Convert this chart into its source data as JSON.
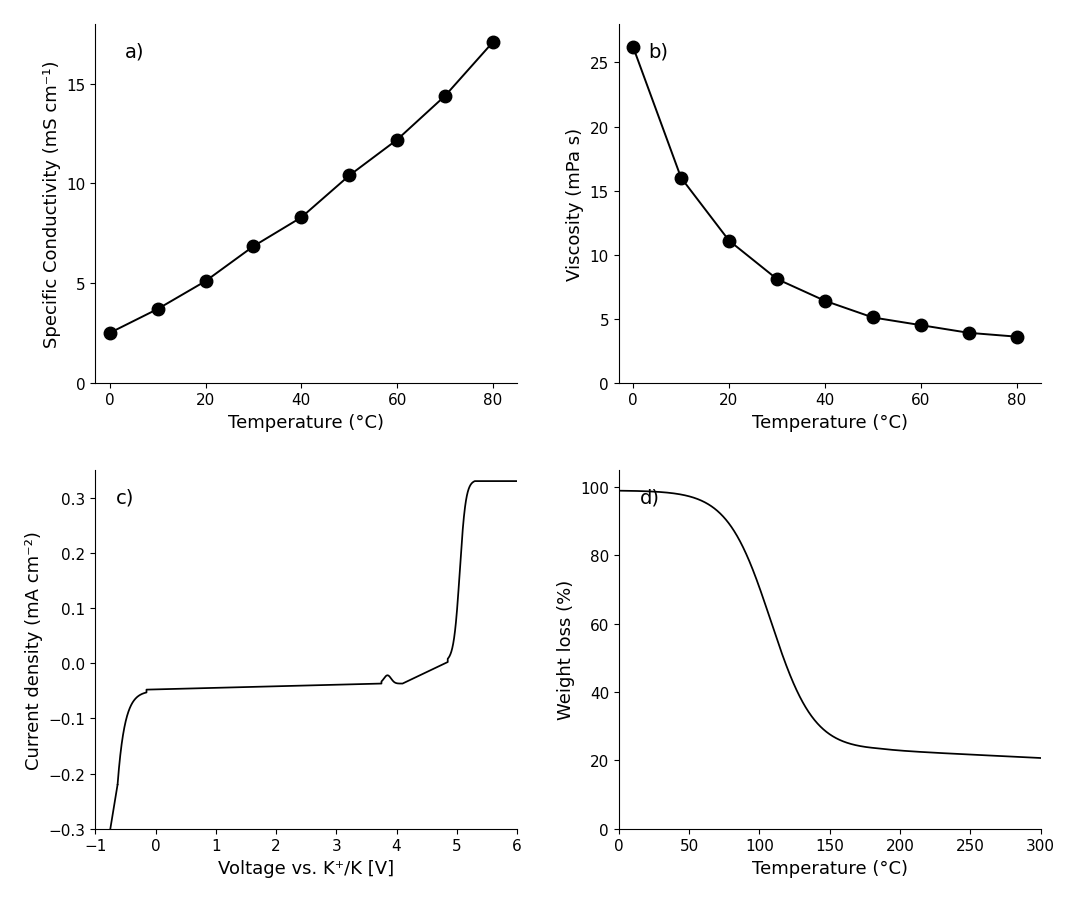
{
  "panel_a": {
    "label": "a)",
    "x": [
      0,
      10,
      20,
      30,
      40,
      50,
      60,
      70,
      80
    ],
    "y": [
      2.5,
      3.7,
      5.1,
      6.85,
      8.3,
      10.4,
      12.2,
      14.4,
      17.1
    ],
    "xlabel": "Temperature (°C)",
    "ylabel": "Specific Conductivity (mS cm⁻¹)",
    "xlim": [
      -3,
      85
    ],
    "ylim": [
      0,
      18
    ],
    "yticks": [
      0,
      5,
      10,
      15
    ],
    "xticks": [
      0,
      20,
      40,
      60,
      80
    ]
  },
  "panel_b": {
    "label": "b)",
    "x": [
      0,
      10,
      20,
      30,
      40,
      50,
      60,
      70,
      80
    ],
    "y": [
      26.2,
      16.0,
      11.1,
      8.1,
      6.4,
      5.1,
      4.5,
      3.9,
      3.6
    ],
    "xlabel": "Temperature (°C)",
    "ylabel": "Viscosity (mPa s)",
    "xlim": [
      -3,
      85
    ],
    "ylim": [
      0,
      28
    ],
    "yticks": [
      0,
      5,
      10,
      15,
      20,
      25
    ],
    "xticks": [
      0,
      20,
      40,
      60,
      80
    ]
  },
  "panel_c": {
    "label": "c)",
    "xlabel": "Voltage vs. K⁺/K [V]",
    "ylabel": "Current density (mA cm⁻²)",
    "xlim": [
      -1,
      6
    ],
    "ylim": [
      -0.3,
      0.35
    ],
    "yticks": [
      -0.3,
      -0.2,
      -0.1,
      0.0,
      0.1,
      0.2,
      0.3
    ],
    "xticks": [
      -1,
      0,
      1,
      2,
      3,
      4,
      5,
      6
    ]
  },
  "panel_d": {
    "label": "d)",
    "xlabel": "Temperature (°C)",
    "ylabel": "Weight loss (%)",
    "xlim": [
      0,
      300
    ],
    "ylim": [
      0,
      105
    ],
    "yticks": [
      0,
      20,
      40,
      60,
      80,
      100
    ],
    "xticks": [
      0,
      50,
      100,
      150,
      200,
      250,
      300
    ]
  },
  "line_color": "#000000",
  "marker_color": "#000000",
  "marker_size": 9,
  "linewidth": 1.4,
  "font_size_label": 13,
  "font_size_tick": 11,
  "font_size_panel_label": 14,
  "background_color": "#ffffff"
}
